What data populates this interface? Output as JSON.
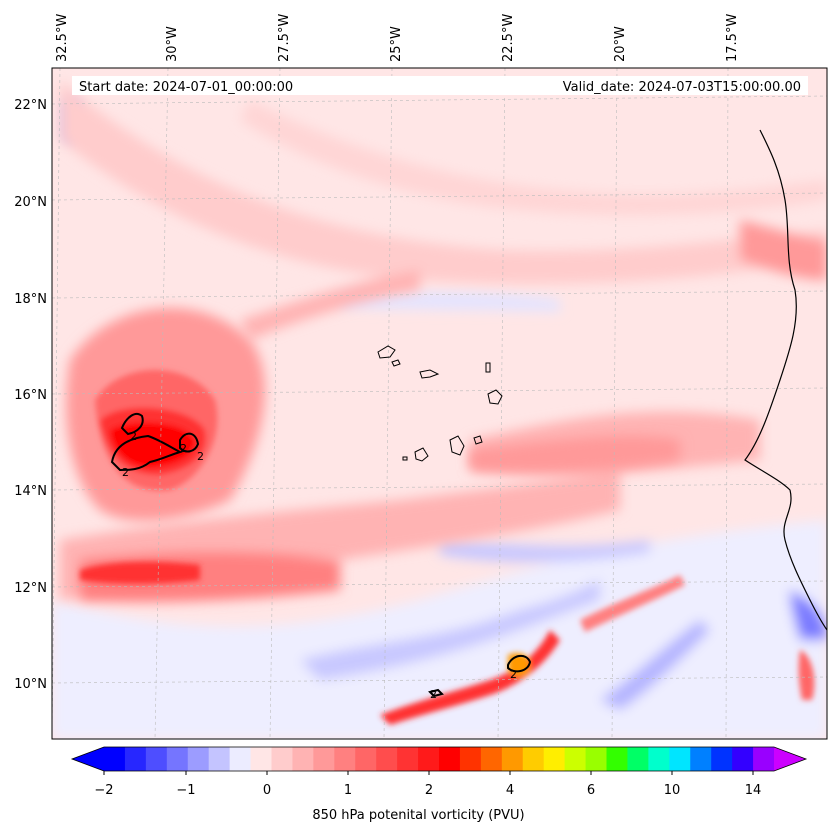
{
  "header": {
    "start_text": "Start date: 2024-07-01_00:00:00",
    "valid_text": "Valid_date: 2024-07-03T15:00:00.00"
  },
  "axes": {
    "lon_ticks": [
      "32.5°W",
      "30°W",
      "27.5°W",
      "25°W",
      "22.5°W",
      "20°W",
      "17.5°W"
    ],
    "lat_ticks": [
      "22°N",
      "20°N",
      "18°N",
      "16°N",
      "14°N",
      "12°N",
      "10°N"
    ]
  },
  "colorbar": {
    "label": "850 hPa potenital vorticity (PVU)",
    "tick_labels": [
      "−2",
      "−1",
      "0",
      "1",
      "2",
      "4",
      "6",
      "10",
      "14"
    ],
    "colors": [
      "#0000ff",
      "#2727ff",
      "#4e4eff",
      "#7575ff",
      "#9c9cff",
      "#c4c4ff",
      "#ececff",
      "#ffe6e6",
      "#ffcccc",
      "#ffb3b3",
      "#ff9999",
      "#ff8080",
      "#ff6666",
      "#ff4d4d",
      "#ff3333",
      "#ff1a1a",
      "#ff0000",
      "#ff3300",
      "#ff6600",
      "#ff9900",
      "#ffcc00",
      "#ffee00",
      "#ccff00",
      "#99ff00",
      "#33ff00",
      "#00ff66",
      "#00ffcc",
      "#00e5ff",
      "#0080ff",
      "#0033ff",
      "#3300ff",
      "#9900ff"
    ],
    "under_color": "#0000ff",
    "over_color": "#cc00ff"
  },
  "contour_labels": [
    "2",
    "2",
    "2",
    "2",
    "2",
    "2"
  ]
}
